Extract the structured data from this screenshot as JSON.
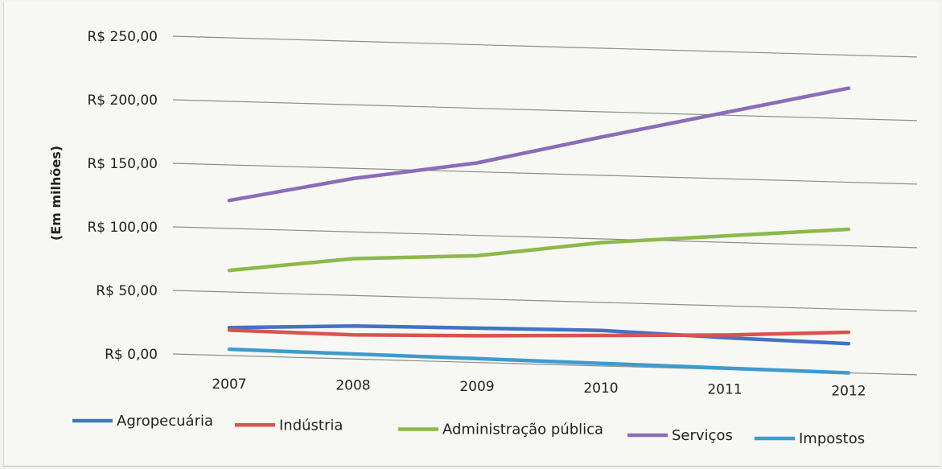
{
  "chart_data": {
    "type": "line",
    "title": "",
    "xlabel": "",
    "ylabel": "(Em milhões)",
    "categories": [
      "2007",
      "2008",
      "2009",
      "2010",
      "2011",
      "2012"
    ],
    "y_ticks": [
      "R$ 0,00",
      "R$ 50,00",
      "R$ 100,00",
      "R$ 150,00",
      "R$ 200,00",
      "R$ 250,00"
    ],
    "ylim": [
      0,
      250
    ],
    "grid": true,
    "legend_position": "bottom",
    "series": [
      {
        "name": "Agropecuária",
        "color": "#4472C4",
        "values": [
          22,
          26,
          27,
          28,
          25,
          23
        ]
      },
      {
        "name": "Indústria",
        "color": "#D9534F",
        "values": [
          20,
          19,
          21,
          24,
          27,
          32
        ]
      },
      {
        "name": "Administração pública",
        "color": "#8DB84A",
        "values": [
          67,
          79,
          84,
          97,
          105,
          113
        ]
      },
      {
        "name": "Serviços",
        "color": "#8B6CB8",
        "values": [
          122,
          142,
          157,
          180,
          202,
          224
        ]
      },
      {
        "name": "Impostos",
        "color": "#3E9BCF",
        "values": [
          5,
          4,
          3,
          2,
          1,
          0
        ]
      }
    ]
  }
}
